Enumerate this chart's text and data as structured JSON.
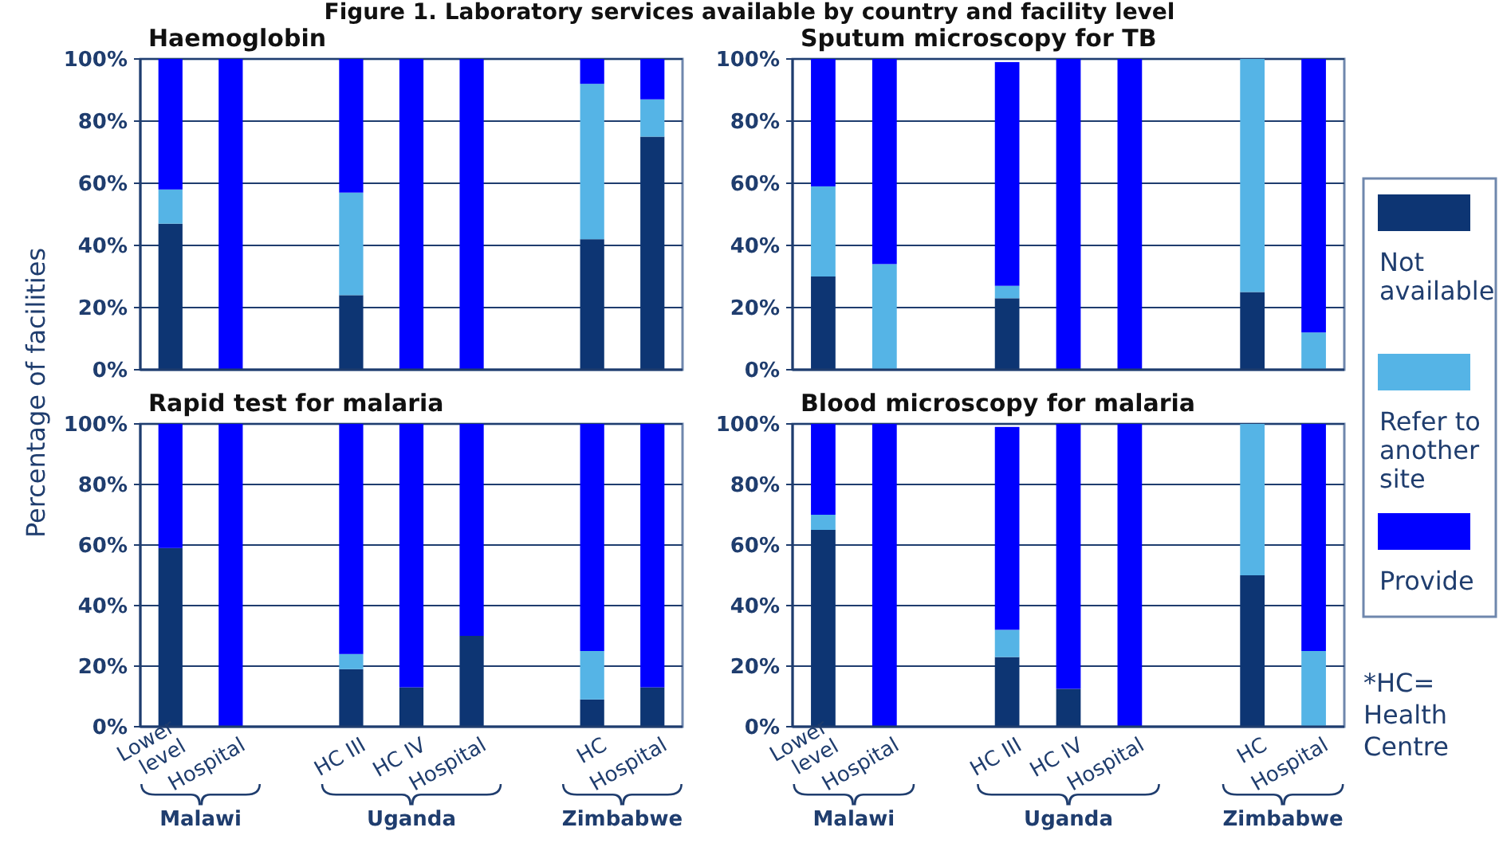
{
  "chart_data": [
    {
      "type": "bar",
      "title": "Haemoglobin",
      "ylabel": "Percentage of facilities",
      "stacked": true,
      "grid": "y",
      "tick_labels": "y",
      "categories": [
        null,
        null,
        null,
        null,
        null,
        null,
        null,
        null,
        null
      ],
      "ylim": [
        0,
        100
      ],
      "yticks": [
        {
          "value": 0,
          "label": "0%"
        },
        {
          "value": 20,
          "label": "20%"
        },
        {
          "value": 40,
          "label": "40%"
        },
        {
          "value": 60,
          "label": "60%"
        },
        {
          "value": 80,
          "label": "80%"
        },
        {
          "value": 100,
          "label": "100%"
        }
      ],
      "annotations": [
        "Figure 1. Laboratory services available by country and facility level"
      ],
      "series": [
        {
          "color": "#0d3573",
          "values": [
            47,
            0,
            null,
            24,
            0,
            0,
            null,
            42,
            75
          ]
        },
        {
          "color": "#55b4e6",
          "values": [
            11,
            0,
            null,
            33,
            0,
            0,
            null,
            50,
            12
          ]
        },
        {
          "color": "#0000ff",
          "values": [
            42,
            100,
            null,
            43,
            100,
            100,
            null,
            8,
            13
          ]
        }
      ]
    },
    {
      "type": "bar",
      "title": "Sputum microscopy for TB",
      "stacked": true,
      "grid": "y",
      "tick_labels": "y",
      "legend": "right",
      "categories": [
        null,
        null,
        null,
        null,
        null,
        null,
        null,
        null,
        null
      ],
      "ylim": [
        0,
        100
      ],
      "yticks": [
        {
          "value": 0,
          "label": "0%"
        },
        {
          "value": 20,
          "label": "20%"
        },
        {
          "value": 40,
          "label": "40%"
        },
        {
          "value": 60,
          "label": "60%"
        },
        {
          "value": 80,
          "label": "80%"
        },
        {
          "value": 100,
          "label": "100%"
        }
      ],
      "series": [
        {
          "name": "Not available",
          "color": "#0d3573",
          "values": [
            30,
            0,
            null,
            23,
            0,
            0,
            null,
            25,
            0
          ]
        },
        {
          "name": "Refer to another site",
          "color": "#55b4e6",
          "values": [
            29,
            34,
            null,
            4,
            0,
            0,
            null,
            75,
            12
          ]
        },
        {
          "name": "Provide",
          "color": "#0000ff",
          "values": [
            41,
            66,
            null,
            72,
            100,
            100,
            null,
            0,
            88
          ]
        }
      ]
    },
    {
      "type": "bar",
      "title": "Rapid test for malaria",
      "stacked": true,
      "grid": "y",
      "categories": [
        "Lower level",
        "Hospital",
        null,
        "HC III",
        "HC IV",
        "Hospital",
        null,
        "HC",
        "Hospital"
      ],
      "ylim": [
        0,
        100
      ],
      "yticks": [
        {
          "value": 0,
          "label": "0%"
        },
        {
          "value": 20,
          "label": "20%"
        },
        {
          "value": 40,
          "label": "40%"
        },
        {
          "value": 60,
          "label": "60%"
        },
        {
          "value": 80,
          "label": "80%"
        },
        {
          "value": 100,
          "label": "100%"
        }
      ],
      "annotations": [
        "Malawi",
        "Uganda",
        "Zimbabwe"
      ],
      "series": [
        {
          "color": "#0d3573",
          "values": [
            59,
            0,
            null,
            19,
            13,
            30,
            null,
            9,
            13
          ]
        },
        {
          "color": "#55b4e6",
          "values": [
            0,
            0,
            null,
            5,
            0,
            0,
            null,
            16,
            0
          ]
        },
        {
          "color": "#0000ff",
          "values": [
            41,
            100,
            null,
            76,
            87,
            70,
            null,
            75,
            87
          ]
        }
      ]
    },
    {
      "type": "bar",
      "title": "Blood microscopy for malaria",
      "stacked": true,
      "grid": "y",
      "categories": [
        "Lower level",
        "Hospital",
        null,
        "HC III",
        "HC IV",
        "Hospital",
        null,
        "HC",
        "Hospital"
      ],
      "ylim": [
        0,
        100
      ],
      "yticks": [
        {
          "value": 0,
          "label": "0%"
        },
        {
          "value": 20,
          "label": "20%"
        },
        {
          "value": 40,
          "label": "40%"
        },
        {
          "value": 60,
          "label": "60%"
        },
        {
          "value": 80,
          "label": "80%"
        },
        {
          "value": 100,
          "label": "100%"
        }
      ],
      "annotations": [
        "Malawi",
        "Uganda",
        "Zimbabwe",
        "*HC= Health Centre"
      ],
      "series": [
        {
          "color": "#0d3573",
          "values": [
            65,
            0,
            null,
            23,
            12.5,
            0,
            null,
            50,
            0
          ]
        },
        {
          "color": "#55b4e6",
          "values": [
            5,
            0,
            null,
            9,
            0,
            0,
            null,
            50,
            25
          ]
        },
        {
          "color": "#0000ff",
          "values": [
            30,
            100,
            null,
            67,
            87.5,
            100,
            null,
            0,
            75
          ]
        }
      ]
    }
  ]
}
